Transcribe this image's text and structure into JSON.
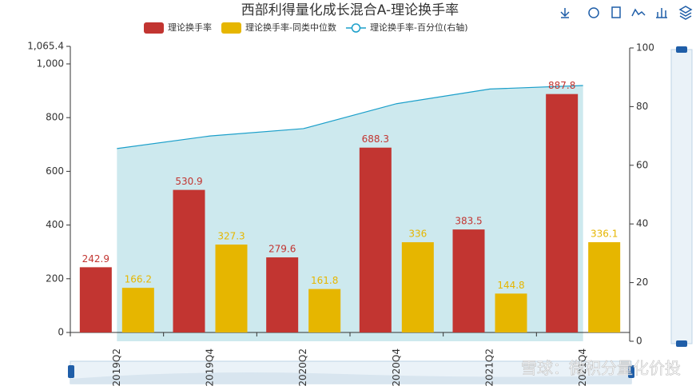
{
  "chart_data": {
    "type": "bar",
    "title": "西部利得量化成长混合A-理论换手率",
    "categories": [
      "2019Q2",
      "2019Q4",
      "2020Q2",
      "2020Q4",
      "2021Q2",
      "2021Q4"
    ],
    "series": [
      {
        "name": "理论换手率",
        "color": "#c23531",
        "type": "bar",
        "values": [
          242.9,
          530.9,
          279.6,
          688.3,
          383.5,
          887.8
        ]
      },
      {
        "name": "理论换手率-同类中位数",
        "color": "#e6b600",
        "type": "bar",
        "values": [
          166.2,
          327.3,
          161.8,
          336,
          144.8,
          336.1
        ]
      },
      {
        "name": "理论换手率-百分位(右轴)",
        "color": "#1b9fca",
        "type": "line",
        "axis": "y2",
        "values": [
          65.7,
          70,
          72.5,
          81,
          86,
          87.2
        ]
      }
    ],
    "ylim": [
      0,
      1065.4
    ],
    "yticks": [
      0,
      200,
      400,
      600,
      800,
      {
        "value": 1000,
        "label": "1,000"
      },
      {
        "value": 1065.4,
        "label": "1,065.4"
      }
    ],
    "y2lim": [
      0,
      100
    ],
    "y2ticks": [
      0,
      20,
      40,
      60,
      80,
      100
    ],
    "watermark": "雪球：微积分量化价投"
  }
}
